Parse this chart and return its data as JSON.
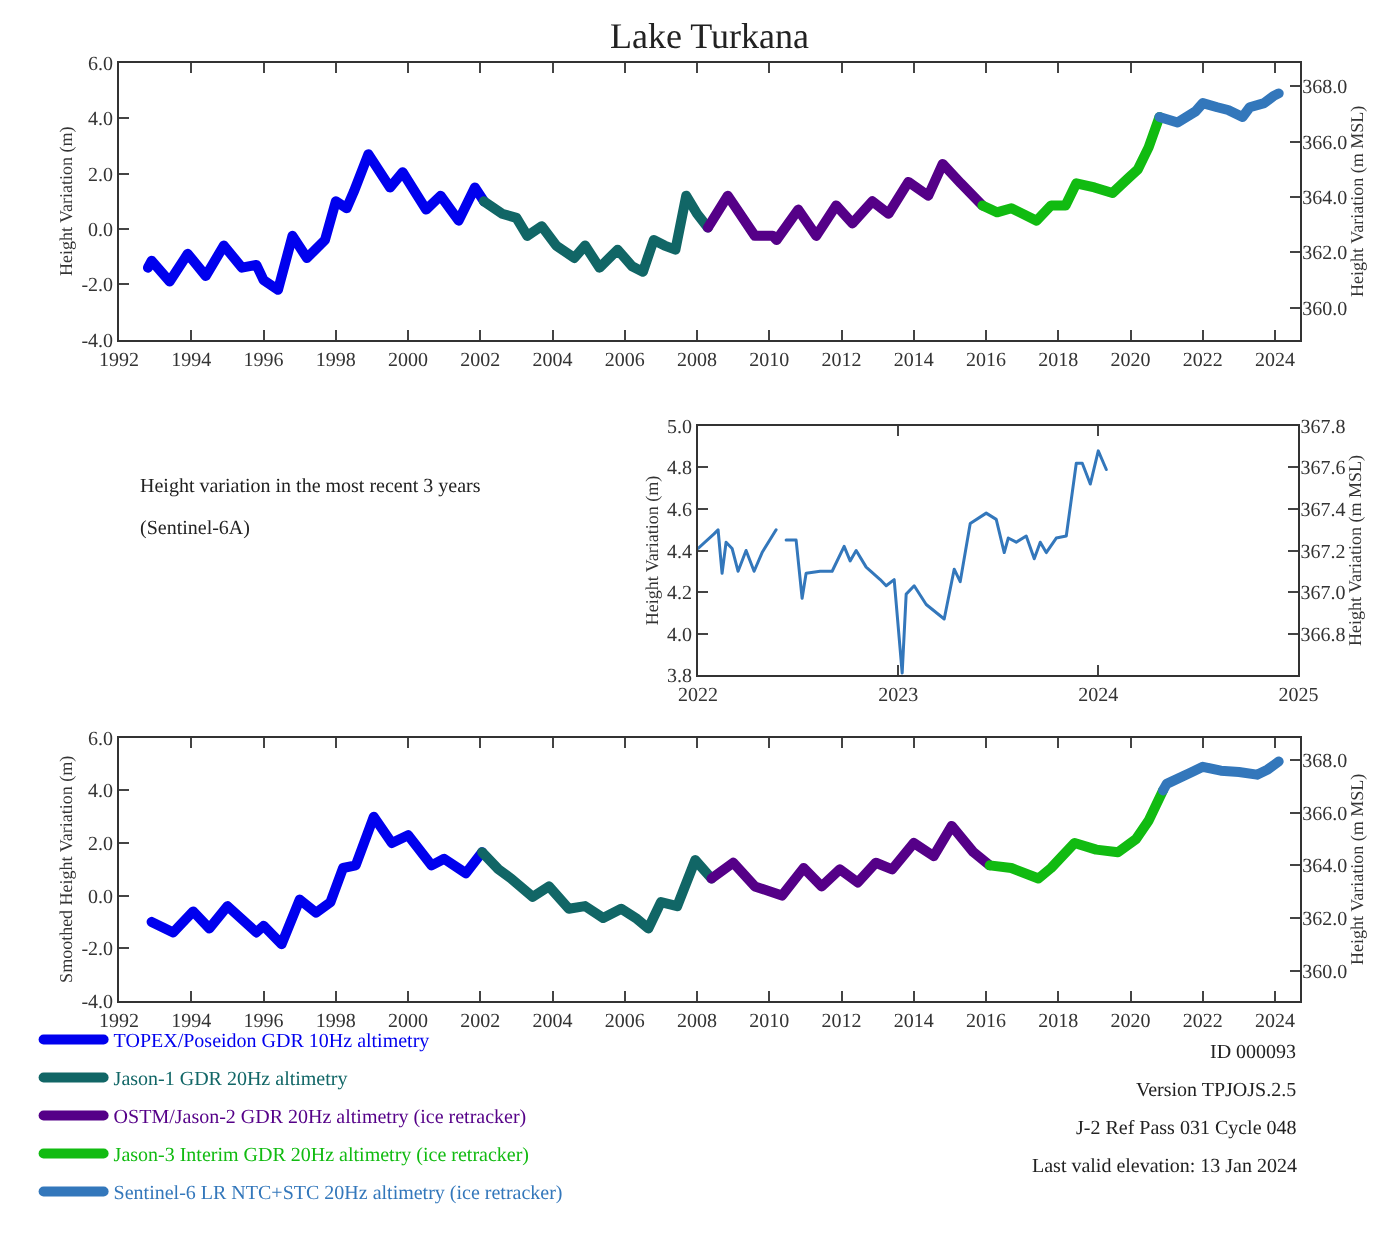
{
  "chart_data": [
    {
      "type": "line",
      "title": "Lake Turkana",
      "ylabel": "Height Variation (m)",
      "y2label": "Height Variation (m MSL)",
      "grid": false,
      "line_style": "solid",
      "xlim": [
        1992,
        2024.7
      ],
      "xticks": [
        1992,
        1994,
        1996,
        1998,
        2000,
        2002,
        2004,
        2006,
        2008,
        2010,
        2012,
        2014,
        2016,
        2018,
        2020,
        2022,
        2024
      ],
      "ylim": [
        -4,
        6
      ],
      "yticks": [
        {
          "value": -4,
          "label": "-4.0"
        },
        {
          "value": -2,
          "label": "-2.0"
        },
        {
          "value": 0,
          "label": "0.0"
        },
        {
          "value": 2,
          "label": "2.0"
        },
        {
          "value": 4,
          "label": "4.0"
        },
        {
          "value": 6,
          "label": "6.0"
        }
      ],
      "y2lim": [
        358.85,
        368.85
      ],
      "y2ticks": [
        {
          "value": 360,
          "label": "360.0"
        },
        {
          "value": 362,
          "label": "362.0"
        },
        {
          "value": 364,
          "label": "364.0"
        },
        {
          "value": 366,
          "label": "366.0"
        },
        {
          "value": 368,
          "label": "368.0"
        }
      ],
      "series": [
        {
          "color": "#0000ee",
          "x": [
            1992.8,
            1992.9,
            1993.4,
            1993.9,
            1994.4,
            1994.9,
            1995.4,
            1995.8,
            1996.0,
            1996.4,
            1996.8,
            1997.2,
            1997.7,
            1998.0,
            1998.3,
            1998.5,
            1998.9,
            1999.5,
            1999.85,
            2000.5,
            2000.9,
            2001.4,
            2001.85,
            2002.1
          ],
          "values": [
            -1.4,
            -1.15,
            -1.9,
            -0.9,
            -1.7,
            -0.6,
            -1.4,
            -1.3,
            -1.85,
            -2.2,
            -0.25,
            -1.05,
            -0.4,
            1.0,
            0.75,
            1.35,
            2.7,
            1.5,
            2.05,
            0.7,
            1.2,
            0.3,
            1.5,
            1.0
          ]
        },
        {
          "color": "#116666",
          "x": [
            2002.1,
            2002.6,
            2003.0,
            2003.3,
            2003.7,
            2004.1,
            2004.6,
            2004.9,
            2005.3,
            2005.8,
            2006.2,
            2006.5,
            2006.8,
            2007.1,
            2007.4,
            2007.7,
            2008.0,
            2008.3
          ],
          "values": [
            1.0,
            0.55,
            0.4,
            -0.25,
            0.1,
            -0.6,
            -1.05,
            -0.6,
            -1.4,
            -0.75,
            -1.35,
            -1.55,
            -0.4,
            -0.6,
            -0.75,
            1.2,
            0.55,
            0.05
          ]
        },
        {
          "color": "#550088",
          "x": [
            2008.3,
            2008.85,
            2009.6,
            2010.1,
            2010.2,
            2010.8,
            2011.3,
            2011.85,
            2012.3,
            2012.85,
            2013.3,
            2013.85,
            2014.4,
            2014.8,
            2015.3,
            2015.9
          ],
          "values": [
            0.05,
            1.2,
            -0.25,
            -0.25,
            -0.4,
            0.7,
            -0.25,
            0.85,
            0.2,
            1.0,
            0.55,
            1.7,
            1.2,
            2.35,
            1.65,
            0.85
          ]
        },
        {
          "color": "#11bb11",
          "x": [
            2015.9,
            2016.3,
            2016.7,
            2017.4,
            2017.8,
            2018.2,
            2018.5,
            2019.0,
            2019.5,
            2019.95,
            2020.2,
            2020.5,
            2020.8
          ],
          "values": [
            0.85,
            0.6,
            0.75,
            0.3,
            0.85,
            0.85,
            1.65,
            1.5,
            1.3,
            1.85,
            2.15,
            2.95,
            4.05
          ]
        },
        {
          "color": "#3377bb",
          "x": [
            2020.8,
            2021.3,
            2021.8,
            2022.0,
            2022.4,
            2022.7,
            2023.1,
            2023.3,
            2023.7,
            2023.95,
            2024.1
          ],
          "values": [
            4.05,
            3.85,
            4.25,
            4.55,
            4.4,
            4.3,
            4.05,
            4.4,
            4.55,
            4.8,
            4.9
          ]
        }
      ]
    },
    {
      "type": "line",
      "ylabel": "Height Variation (m)",
      "y2label": "Height Variation (m MSL)",
      "grid": false,
      "line_style": "solid",
      "annotations": [
        "Height variation in the most recent 3 years",
        "(Sentinel-6A)"
      ],
      "xlim": [
        2022,
        2025
      ],
      "xticks": [
        2022,
        2023,
        2024,
        2025
      ],
      "ylim": [
        3.8,
        5.0
      ],
      "yticks": [
        {
          "value": 3.8,
          "label": "3.8"
        },
        {
          "value": 4.0,
          "label": "4.0"
        },
        {
          "value": 4.2,
          "label": "4.2"
        },
        {
          "value": 4.4,
          "label": "4.4"
        },
        {
          "value": 4.6,
          "label": "4.6"
        },
        {
          "value": 4.8,
          "label": "4.8"
        },
        {
          "value": 5.0,
          "label": "5.0"
        }
      ],
      "y2lim": [
        366.6,
        367.8
      ],
      "y2ticks": [
        {
          "value": 366.8,
          "label": "366.8"
        },
        {
          "value": 367.0,
          "label": "367.0"
        },
        {
          "value": 367.2,
          "label": "367.2"
        },
        {
          "value": 367.4,
          "label": "367.4"
        },
        {
          "value": 367.6,
          "label": "367.6"
        },
        {
          "value": 367.8,
          "label": "367.8"
        }
      ],
      "series": [
        {
          "color": "#3377bb",
          "x": [
            2022.0,
            2022.08,
            2022.1,
            2022.12,
            2022.14,
            2022.17,
            2022.2,
            2022.24,
            2022.28,
            2022.32,
            2022.39,
            2022.41,
            2022.44,
            2022.49,
            2022.52,
            2022.54,
            2022.61,
            2022.67,
            2022.73,
            2022.76,
            2022.79,
            2022.84,
            2022.91,
            2022.94,
            2022.98,
            2023.02,
            2023.04,
            2023.08,
            2023.14,
            2023.23,
            2023.28,
            2023.31,
            2023.36,
            2023.44,
            2023.49,
            2023.53,
            2023.55,
            2023.59,
            2023.64,
            2023.68,
            2023.71,
            2023.74,
            2023.79,
            2023.84,
            2023.89,
            2023.92,
            2023.96,
            2024.0,
            2024.04
          ],
          "values": [
            4.41,
            4.48,
            4.5,
            4.29,
            4.44,
            4.41,
            4.3,
            4.4,
            4.3,
            4.39,
            4.5,
            null,
            4.45,
            4.45,
            4.17,
            4.29,
            4.3,
            4.3,
            4.42,
            4.35,
            4.4,
            4.32,
            4.26,
            4.23,
            4.26,
            3.81,
            4.19,
            4.23,
            4.14,
            4.07,
            4.31,
            4.25,
            4.53,
            4.58,
            4.55,
            4.39,
            4.46,
            4.44,
            4.47,
            4.36,
            4.44,
            4.39,
            4.46,
            4.47,
            4.82,
            4.82,
            4.72,
            4.88,
            4.79
          ]
        }
      ]
    },
    {
      "type": "line",
      "ylabel": "Smoothed Height Variation (m)",
      "y2label": "Height Variation (m MSL)",
      "grid": false,
      "line_style": "solid",
      "legend": "bottom left",
      "annotations": [
        "ID 000093",
        "Version TPJOJS.2.5",
        "J-2 Ref Pass 031 Cycle 048",
        "Last valid elevation: 13 Jan 2024"
      ],
      "xlim": [
        1992,
        2024.7
      ],
      "xticks": [
        1992,
        1994,
        1996,
        1998,
        2000,
        2002,
        2004,
        2006,
        2008,
        2010,
        2012,
        2014,
        2016,
        2018,
        2020,
        2022,
        2024
      ],
      "ylim": [
        -4,
        6
      ],
      "yticks": [
        {
          "value": -4,
          "label": "-4.0"
        },
        {
          "value": -2,
          "label": "-2.0"
        },
        {
          "value": 0,
          "label": "0.0"
        },
        {
          "value": 2,
          "label": "2.0"
        },
        {
          "value": 4,
          "label": "4.0"
        },
        {
          "value": 6,
          "label": "6.0"
        }
      ],
      "y2lim": [
        358.85,
        368.85
      ],
      "y2ticks": [
        {
          "value": 360,
          "label": "360.0"
        },
        {
          "value": 362,
          "label": "362.0"
        },
        {
          "value": 364,
          "label": "364.0"
        },
        {
          "value": 366,
          "label": "366.0"
        },
        {
          "value": 368,
          "label": "368.0"
        }
      ],
      "series": [
        {
          "name": "TOPEX/Poseidon GDR 10Hz altimetry",
          "color": "#0000ee",
          "x": [
            1992.9,
            1993.5,
            1994.05,
            1994.5,
            1995.0,
            1995.8,
            1996.0,
            1996.5,
            1997.0,
            1997.45,
            1997.85,
            1998.2,
            1998.55,
            1999.05,
            1999.55,
            2000.0,
            2000.65,
            2001.0,
            2001.6,
            2002.05
          ],
          "values": [
            -1.0,
            -1.4,
            -0.6,
            -1.25,
            -0.4,
            -1.4,
            -1.15,
            -1.85,
            -0.15,
            -0.65,
            -0.25,
            1.05,
            1.15,
            3.0,
            2.0,
            2.3,
            1.15,
            1.4,
            0.85,
            1.65
          ]
        },
        {
          "name": "Jason-1 GDR 20Hz altimetry",
          "color": "#116666",
          "x": [
            2002.05,
            2002.5,
            2002.85,
            2003.45,
            2003.9,
            2004.45,
            2004.9,
            2005.4,
            2005.9,
            2006.3,
            2006.65,
            2007.0,
            2007.45,
            2007.95,
            2008.4
          ],
          "values": [
            1.65,
            1.0,
            0.65,
            -0.05,
            0.35,
            -0.5,
            -0.4,
            -0.85,
            -0.5,
            -0.85,
            -1.25,
            -0.25,
            -0.4,
            1.35,
            0.65
          ]
        },
        {
          "name": "OSTM/Jason-2 GDR 20Hz altimetry (ice retracker)",
          "color": "#550088",
          "x": [
            2008.4,
            2009.0,
            2009.6,
            2010.35,
            2010.95,
            2011.45,
            2011.95,
            2012.45,
            2012.95,
            2013.4,
            2014.0,
            2014.55,
            2015.05,
            2015.65,
            2016.1
          ],
          "values": [
            0.65,
            1.25,
            0.35,
            0.0,
            1.05,
            0.35,
            1.0,
            0.5,
            1.25,
            1.0,
            2.0,
            1.5,
            2.65,
            1.65,
            1.15
          ]
        },
        {
          "name": "Jason-3 Interim GDR 20Hz altimetry (ice retracker)",
          "color": "#11bb11",
          "x": [
            2016.1,
            2016.7,
            2017.45,
            2017.8,
            2018.45,
            2019.05,
            2019.65,
            2020.15,
            2020.5,
            2020.9
          ],
          "values": [
            1.15,
            1.05,
            0.65,
            1.05,
            2.0,
            1.75,
            1.65,
            2.15,
            2.85,
            4.0
          ]
        },
        {
          "name": "Sentinel-6 LR NTC+STC 20Hz altimetry (ice retracker)",
          "color": "#3377bb",
          "x": [
            2020.9,
            2021.0,
            2021.7,
            2022.0,
            2022.5,
            2023.0,
            2023.5,
            2023.8,
            2024.1
          ],
          "values": [
            4.0,
            4.25,
            4.7,
            4.9,
            4.75,
            4.7,
            4.6,
            4.8,
            5.1
          ]
        }
      ]
    }
  ]
}
